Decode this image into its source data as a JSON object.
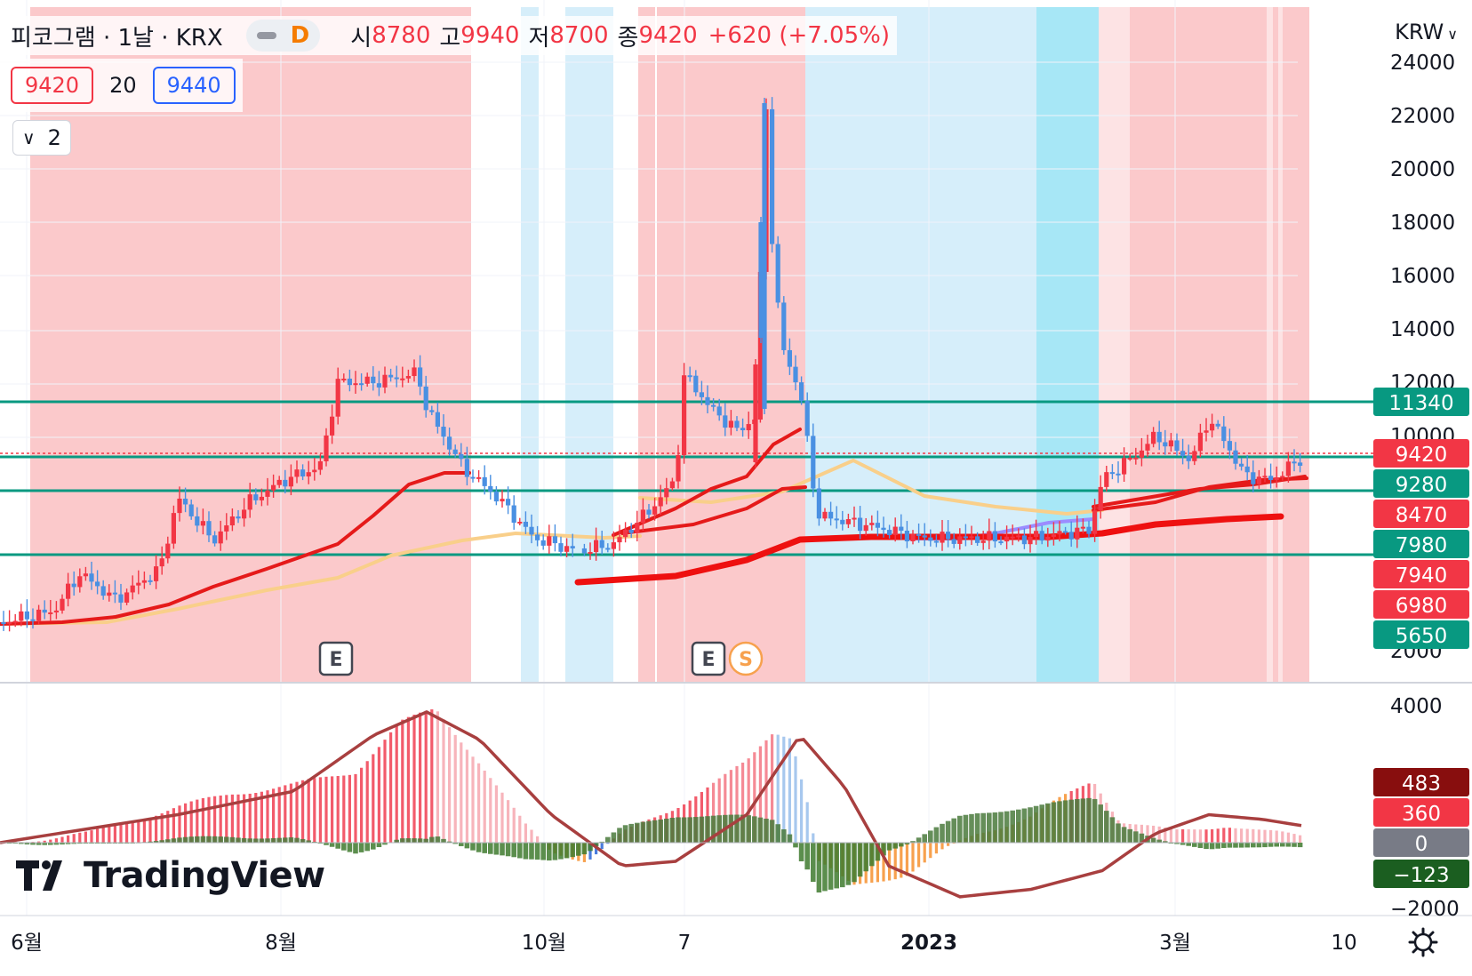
{
  "header": {
    "symbol_title": "피코그램 · 1날 · KRX",
    "interval_badge": "D",
    "open_label": "시",
    "open_value": "8780",
    "high_label": "고",
    "high_value": "9940",
    "low_label": "저",
    "low_value": "8700",
    "close_label": "종",
    "close_value": "9420",
    "change": "+620 (+7.05%)"
  },
  "quote": {
    "bid": "9420",
    "spread": "20",
    "ask": "9440"
  },
  "indicator_toggle": {
    "count": "2"
  },
  "currency": "KRW",
  "logo_text": "TradingView",
  "colors": {
    "up": "#f23645",
    "down": "#4a90e2",
    "teal_line": "#089981",
    "zone_red": "#fbc9cb",
    "zone_blue": "#d6eefa",
    "zone_cyan": "#a7e7f6",
    "zone_pink": "#fde3e4"
  },
  "chart_data": {
    "type": "candlestick",
    "price_axis": {
      "ticks": [
        "2000",
        "10000",
        "12000",
        "14000",
        "16000",
        "18000",
        "20000",
        "22000",
        "24000"
      ]
    },
    "horizontal_levels": [
      11340,
      9280,
      7980,
      5650
    ],
    "price_labels": [
      {
        "text": "11340",
        "kind": "teal"
      },
      {
        "text": "9420",
        "kind": "red"
      },
      {
        "text": "9280",
        "kind": "teal"
      },
      {
        "text": "8470",
        "kind": "red"
      },
      {
        "text": "7980",
        "kind": "teal"
      },
      {
        "text": "7940",
        "kind": "red"
      },
      {
        "text": "6980",
        "kind": "red"
      },
      {
        "text": "5650",
        "kind": "teal"
      }
    ],
    "time_axis": [
      "6월",
      "8월",
      "10월",
      "7",
      "2023",
      "3월",
      "10"
    ],
    "event_markers": [
      "E",
      "E",
      "S"
    ],
    "macd_axis": [
      "4000",
      "−2000"
    ],
    "macd_labels": [
      {
        "text": "483",
        "kind": "darkred"
      },
      {
        "text": "360",
        "kind": "red"
      },
      {
        "text": "0",
        "kind": "gray"
      },
      {
        "text": "−123",
        "kind": "darkgreen"
      }
    ]
  }
}
